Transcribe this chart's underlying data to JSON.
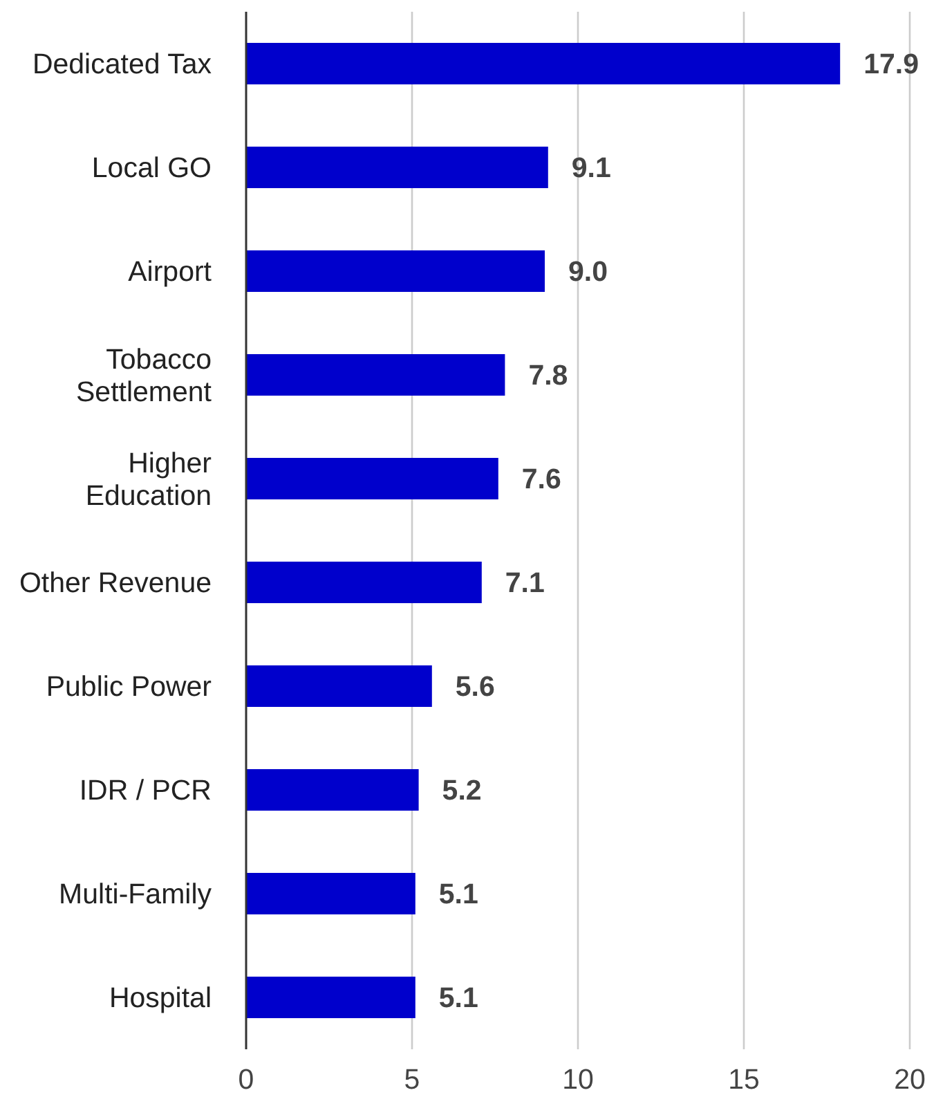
{
  "chart_data": {
    "type": "bar",
    "orientation": "horizontal",
    "categories": [
      "Dedicated Tax",
      "Local GO",
      "Airport",
      "Tobacco Settlement",
      "Higher Education",
      "Other Revenue",
      "Public Power",
      "IDR / PCR",
      "Multi-Family",
      "Hospital"
    ],
    "values": [
      17.9,
      9.1,
      9.0,
      7.8,
      7.6,
      7.1,
      5.6,
      5.2,
      5.1,
      5.1
    ],
    "value_labels": [
      "17.9",
      "9.1",
      "9.0",
      "7.8",
      "7.6",
      "7.1",
      "5.6",
      "5.2",
      "5.1",
      "5.1"
    ],
    "color": "#0000cc",
    "xlim": [
      0,
      20
    ],
    "xticks": [
      0,
      5,
      10,
      15,
      20
    ],
    "grid": "x"
  }
}
